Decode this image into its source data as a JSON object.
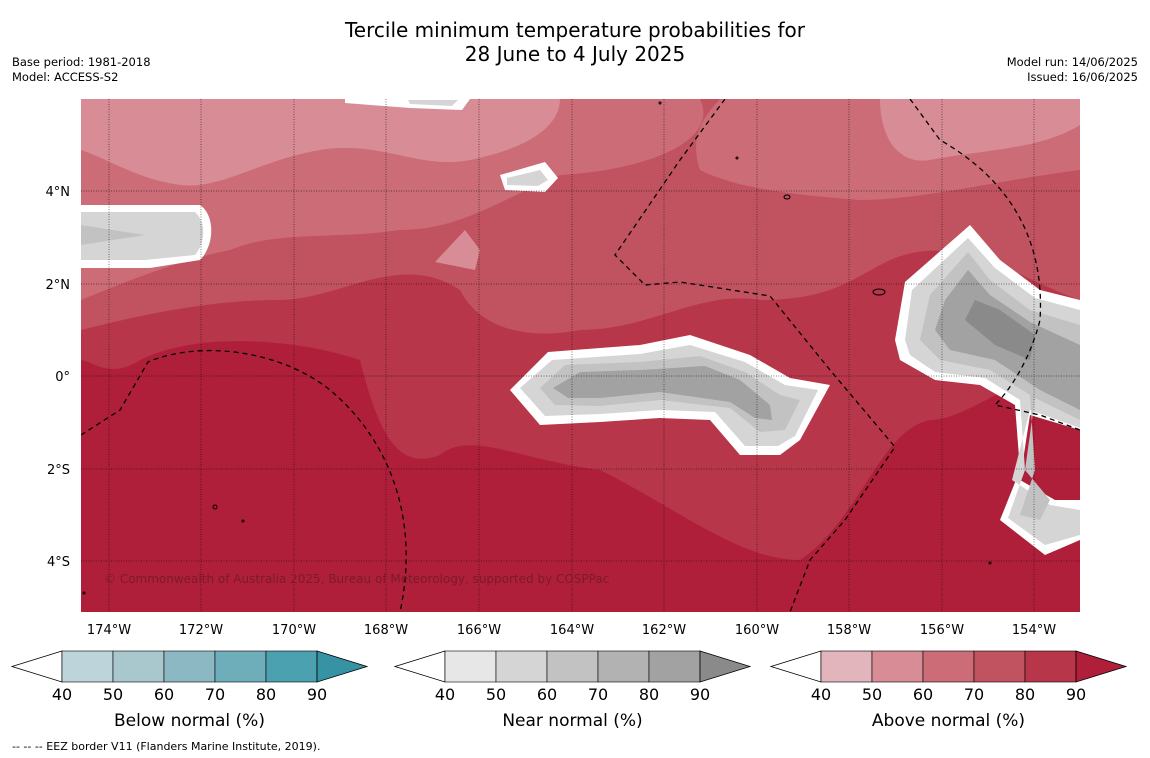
{
  "header": {
    "title_line1": "Tercile minimum temperature probabilities for",
    "title_line2": "28 June to 4 July 2025",
    "base_period": "Base period: 1981-2018",
    "model": "Model: ACCESS-S2",
    "model_run": "Model run: 14/06/2025",
    "issued": "Issued: 16/06/2025"
  },
  "map": {
    "region": "Central equatorial Pacific",
    "lon_ticks": [
      "174°W",
      "172°W",
      "170°W",
      "168°W",
      "166°W",
      "164°W",
      "162°W",
      "160°W",
      "158°W",
      "156°W",
      "154°W"
    ],
    "lat_ticks": [
      "4°N",
      "2°N",
      "0°",
      "2°S",
      "4°S"
    ],
    "dominant_category": "Above normal",
    "near_normal_areas": [
      "west edge near 3°N",
      "equator 166°W–160°W",
      "east edge 156°W–153°W"
    ],
    "copyright": "© Commonwealth of Australia 2025, Bureau of Meteorology, supported by COSPPac"
  },
  "legends": [
    {
      "label": "Below normal (%)",
      "ticks": [
        "40",
        "50",
        "60",
        "70",
        "80",
        "90"
      ],
      "colors": [
        "#bcd4da",
        "#a9c8ce",
        "#8cb8c3",
        "#6eaebb",
        "#4ba1b0",
        "#3593a4"
      ]
    },
    {
      "label": "Near normal (%)",
      "ticks": [
        "40",
        "50",
        "60",
        "70",
        "80",
        "90"
      ],
      "colors": [
        "#e7e7e7",
        "#d5d5d5",
        "#c2c2c2",
        "#b2b2b2",
        "#a2a2a2",
        "#8a8a8a"
      ]
    },
    {
      "label": "Above normal (%)",
      "ticks": [
        "40",
        "50",
        "60",
        "70",
        "80",
        "90"
      ],
      "colors": [
        "#e2b5bc",
        "#d78c96",
        "#cc6c77",
        "#c1525f",
        "#b73649",
        "#b01f3a"
      ]
    }
  ],
  "footer": "--  --  -- EEZ border V11 (Flanders Marine Institute, 2019)."
}
